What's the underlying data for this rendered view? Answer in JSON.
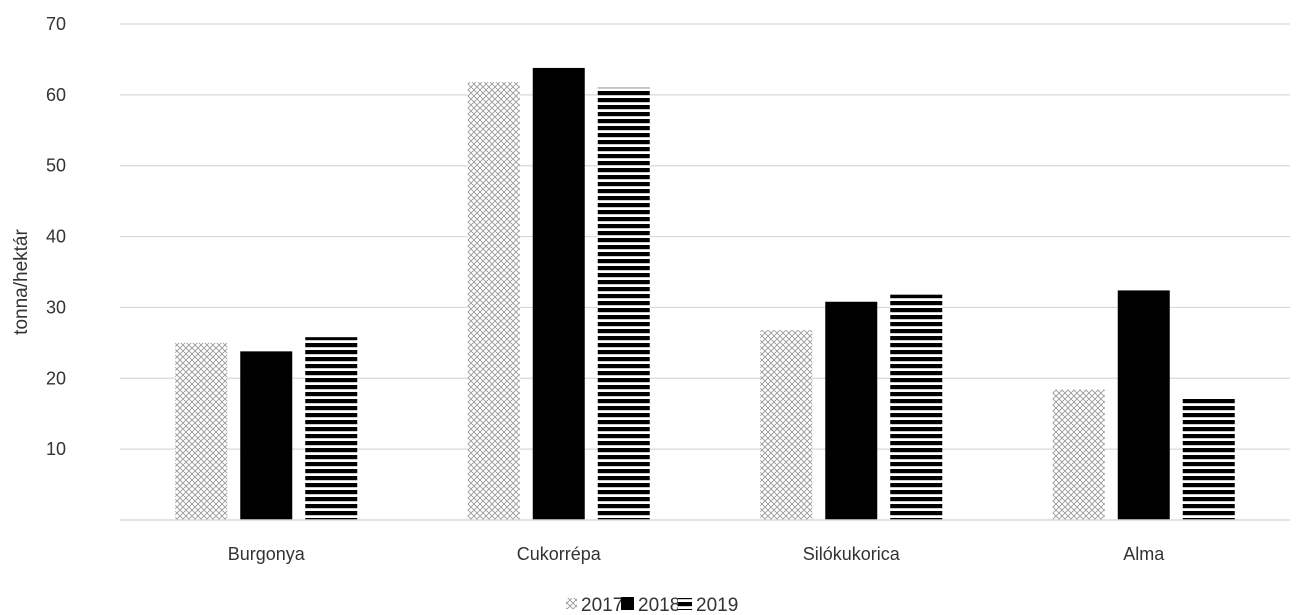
{
  "chart_data": {
    "type": "bar",
    "title": "",
    "xlabel": "",
    "ylabel": "tonna/hektár",
    "ylim": [
      0,
      70
    ],
    "yticks": [
      10,
      20,
      30,
      40,
      50,
      60,
      70
    ],
    "grid": true,
    "legend_position": "bottom",
    "categories": [
      "Burgonya",
      "Cukorrépa",
      "Silókukorica",
      "Alma"
    ],
    "series": [
      {
        "name": "2017",
        "pattern": "crosshatch-light",
        "color": "#b5b5b5",
        "values": [
          25.0,
          61.8,
          26.8,
          18.4
        ]
      },
      {
        "name": "2018",
        "pattern": "solid",
        "color": "#000000",
        "values": [
          23.8,
          63.8,
          30.8,
          32.4
        ]
      },
      {
        "name": "2019",
        "pattern": "horizontal-stripes",
        "color": "#000000",
        "values": [
          25.8,
          61.0,
          31.8,
          17.4
        ]
      }
    ]
  }
}
